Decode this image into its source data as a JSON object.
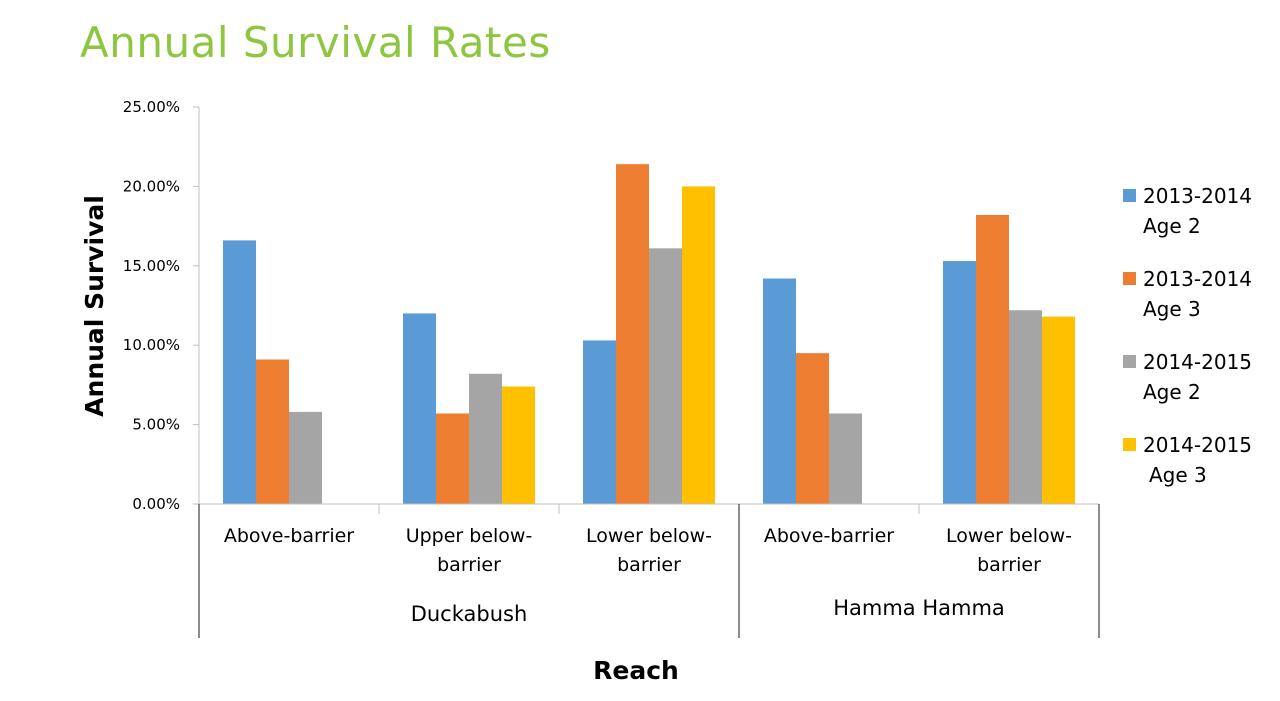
{
  "title": "Annual Survival Rates",
  "chart_data": {
    "type": "bar",
    "ylabel": "Annual Survival",
    "xlabel": "Reach",
    "ylim": [
      0,
      0.25
    ],
    "yticks": [
      0,
      0.05,
      0.1,
      0.15,
      0.2,
      0.25
    ],
    "ytick_labels": [
      "0.00%",
      "5.00%",
      "10.00%",
      "15.00%",
      "20.00%",
      "25.00%"
    ],
    "groups": [
      {
        "label": "Duckabush",
        "categories": [
          0,
          1,
          2
        ]
      },
      {
        "label": "Hamma Hamma",
        "categories": [
          3,
          4
        ]
      }
    ],
    "categories": [
      [
        "Above-barrier"
      ],
      [
        "Upper below-",
        "barrier"
      ],
      [
        "Lower below-",
        "barrier"
      ],
      [
        "Above-barrier"
      ],
      [
        "Lower below-",
        "barrier"
      ]
    ],
    "series": [
      {
        "name": [
          "2013-2014",
          "Age 2"
        ],
        "color": "#5B9BD5",
        "values": [
          0.166,
          0.12,
          0.103,
          0.142,
          0.153
        ]
      },
      {
        "name": [
          "2013-2014",
          "Age 3"
        ],
        "color": "#ED7D31",
        "values": [
          0.091,
          0.057,
          0.214,
          0.095,
          0.182
        ]
      },
      {
        "name": [
          "2014-2015",
          "Age 2"
        ],
        "color": "#A5A5A5",
        "values": [
          0.058,
          0.082,
          0.161,
          0.057,
          0.122
        ]
      },
      {
        "name": [
          "2014-2015",
          "Age 3"
        ],
        "color": "#FFC000",
        "values": [
          null,
          0.074,
          0.2,
          null,
          0.118
        ]
      }
    ],
    "grid": false,
    "legend_position": "right"
  }
}
